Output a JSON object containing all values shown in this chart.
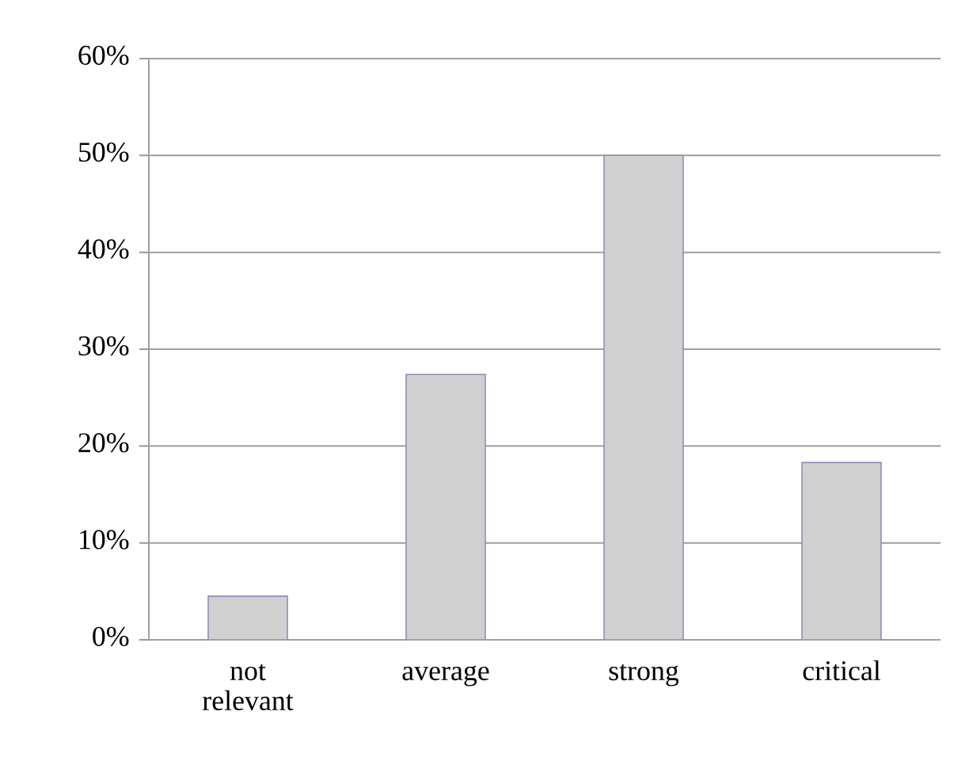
{
  "chart_data": {
    "type": "bar",
    "categories": [
      "not relevant",
      "average",
      "strong",
      "critical"
    ],
    "values": [
      4.5,
      27.4,
      50,
      18.3
    ],
    "color": "#d0d0d0",
    "ylim": [
      0,
      60
    ],
    "yticks": [
      {
        "value": 0,
        "label": "0%"
      },
      {
        "value": 10,
        "label": "10%"
      },
      {
        "value": 20,
        "label": "20%"
      },
      {
        "value": 30,
        "label": "30%"
      },
      {
        "value": 40,
        "label": "40%"
      },
      {
        "value": 50,
        "label": "50%"
      },
      {
        "value": 60,
        "label": "60%"
      }
    ],
    "grid": "y"
  }
}
